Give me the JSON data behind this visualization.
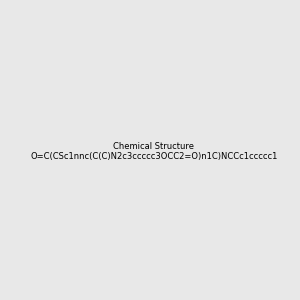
{
  "smiles": "O=C(CSc1nnc(C(C)N2c3ccccc3OCC2=O)n1C)NCCc1ccccc1",
  "bg_color": "#e8e8e8",
  "img_size": [
    300,
    300
  ]
}
